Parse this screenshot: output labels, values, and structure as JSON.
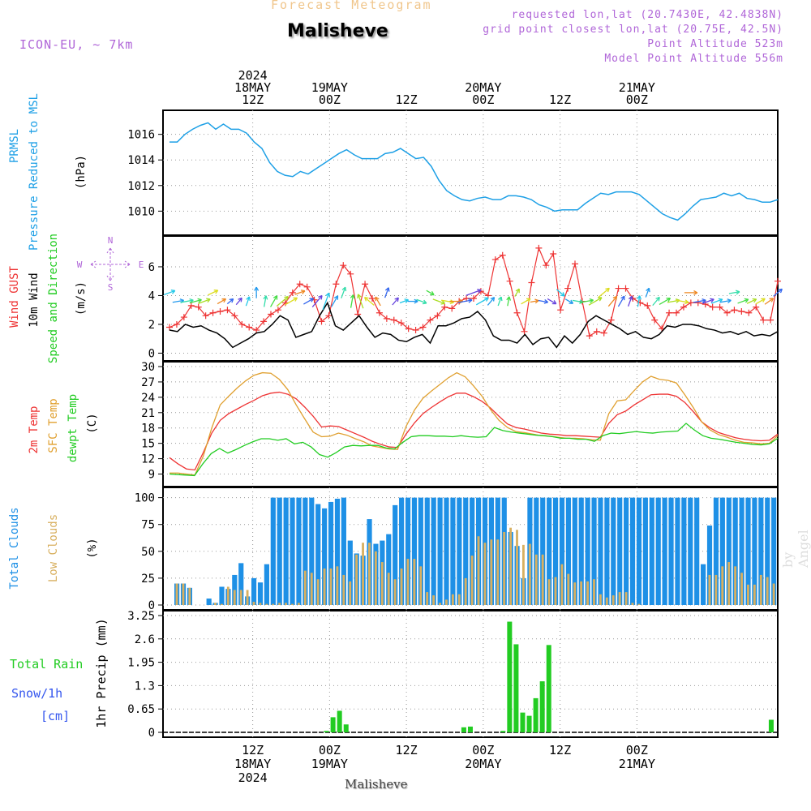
{
  "header": {
    "title": "Forecast Meteogram",
    "location": "Malisheve",
    "model": "ICON-EU, ~ 7km",
    "requested": "requested lon,lat (20.7430E, 42.4838N)",
    "grid_point": "grid point closest lon,lat (20.75E, 42.5N)",
    "point_alt": "Point Altitude 523m",
    "model_alt": "Model Point Altitude 556m"
  },
  "footer": {
    "location": "Malisheve",
    "watermark": "by Angel"
  },
  "colors": {
    "pressure": "#1ea0e6",
    "gust": "#ee3333",
    "wind": "#000000",
    "t2m": "#ee3333",
    "sfc": "#e0a030",
    "dewpt": "#22cc22",
    "total_cloud": "#1e90e6",
    "low_cloud": "#d8b060",
    "precip": "#22cc22",
    "purple": "#b066d8"
  },
  "chart_data": [
    {
      "type": "line",
      "panel": "pressure",
      "ylabel_lines": [
        "PRMSL",
        "Pressure Reduced to MSL"
      ],
      "unit": "(hPa)",
      "ylim": [
        1008.5,
        1017.5
      ],
      "yticks": [
        1010,
        1012,
        1014,
        1016
      ],
      "grid": true,
      "series": [
        {
          "values": [
            1015.4,
            1015.4,
            1016,
            1016.4,
            1016.7,
            1016.9,
            1016.4,
            1016.8,
            1016.4,
            1016.4,
            1016.1,
            1015.4,
            1014.9,
            1013.8,
            1013.1,
            1012.8,
            1012.7,
            1013.1,
            1012.9,
            1013.3,
            1013.7,
            1014.1,
            1014.5,
            1014.8,
            1014.4,
            1014.1,
            1014.1,
            1014.1,
            1014.5,
            1014.6,
            1014.9,
            1014.5,
            1014.1,
            1014.2,
            1013.5,
            1012.4,
            1011.6,
            1011.2,
            1010.9,
            1010.8,
            1011.0,
            1011.1,
            1010.9,
            1010.9,
            1011.2,
            1011.2,
            1011.1,
            1010.9,
            1010.5,
            1010.3,
            1010.0,
            1010.1,
            1010.1,
            1010.1,
            1010.6,
            1011.0,
            1011.4,
            1011.3,
            1011.5,
            1011.5,
            1011.5,
            1011.3,
            1010.8,
            1010.3,
            1009.8,
            1009.5,
            1009.3,
            1009.8,
            1010.4,
            1010.9,
            1011.0,
            1011.1,
            1011.4,
            1011.2,
            1011.4,
            1011.0,
            1010.9,
            1010.7,
            1010.7,
            1010.9
          ]
        }
      ]
    },
    {
      "type": "line",
      "panel": "wind",
      "ylabel_lines": [
        "Wind GUST",
        "10m Wind",
        "Speed and Direction"
      ],
      "unit": "(m/s)",
      "compass": {
        "n": "N",
        "s": "S",
        "e": "E",
        "w": "W"
      },
      "ylim": [
        -0.2,
        7.8
      ],
      "yticks": [
        0,
        2,
        4,
        6
      ],
      "grid": true,
      "series": [
        {
          "name": "Wind GUST",
          "values": [
            1.8,
            2.0,
            2.5,
            3.3,
            3.2,
            2.6,
            2.8,
            2.9,
            3.0,
            2.6,
            2.0,
            1.8,
            1.6,
            2.2,
            2.7,
            3.0,
            3.5,
            4.2,
            4.8,
            4.6,
            3.7,
            2.2,
            2.6,
            4.8,
            6.1,
            5.5,
            2.7,
            4.8,
            3.8,
            2.8,
            2.4,
            2.3,
            2.1,
            1.7,
            1.6,
            1.8,
            2.3,
            2.6,
            3.2,
            3.1,
            3.6,
            3.8,
            3.8,
            4.3,
            4.0,
            6.5,
            6.8,
            5.0,
            2.8,
            1.5,
            4.9,
            7.3,
            6.1,
            6.9,
            3.0,
            4.5,
            6.2,
            3.6,
            1.2,
            1.5,
            1.4,
            2.3,
            4.5,
            4.5,
            3.8,
            3.5,
            3.3,
            2.3,
            1.7,
            2.8,
            2.8,
            3.2,
            3.5,
            3.5,
            3.4,
            3.2,
            3.2,
            2.8,
            3.0,
            2.9,
            2.8,
            3.2,
            2.3,
            2.3,
            5.0
          ]
        },
        {
          "name": "10m Wind",
          "values": [
            1.6,
            1.5,
            2.0,
            1.8,
            1.9,
            1.6,
            1.4,
            1.0,
            0.4,
            0.7,
            1.0,
            1.4,
            1.5,
            2.0,
            2.6,
            2.3,
            1.1,
            1.3,
            1.5,
            2.6,
            3.5,
            1.9,
            1.6,
            2.1,
            2.6,
            1.8,
            1.1,
            1.4,
            1.3,
            0.9,
            0.8,
            1.1,
            1.3,
            0.7,
            1.9,
            1.9,
            2.1,
            2.4,
            2.5,
            2.9,
            2.3,
            1.2,
            0.9,
            0.9,
            0.7,
            1.3,
            0.6,
            1.0,
            1.1,
            0.4,
            1.2,
            0.7,
            1.3,
            2.2,
            2.6,
            2.3,
            2.0,
            1.7,
            1.3,
            1.5,
            1.1,
            1.0,
            1.3,
            1.9,
            1.8,
            2.0,
            2.0,
            1.9,
            1.7,
            1.6,
            1.4,
            1.5,
            1.3,
            1.5,
            1.2,
            1.3,
            1.2,
            1.5
          ]
        }
      ],
      "wind_arrow_directions_deg": [
        250,
        260,
        260,
        255,
        250,
        245,
        240,
        230,
        220,
        200,
        180,
        190,
        210,
        230,
        240,
        250,
        240,
        220,
        200,
        210,
        200,
        190,
        160,
        130,
        150,
        200,
        220,
        250,
        270,
        290,
        300,
        290,
        280,
        270,
        260,
        250,
        240,
        220,
        200,
        190,
        210,
        240,
        260,
        280,
        300,
        310,
        300,
        280,
        260,
        240,
        230,
        220,
        210,
        200,
        190,
        200,
        220,
        240,
        260,
        280,
        270,
        260,
        250,
        250,
        260,
        260,
        250,
        245,
        240,
        235,
        230
      ]
    },
    {
      "type": "line",
      "panel": "temperature",
      "ylabel_lines": [
        "2m Temp",
        "SFC Temp",
        "dewpt Temp"
      ],
      "unit": "(C)",
      "ylim": [
        7.5,
        30
      ],
      "yticks": [
        9,
        12,
        15,
        18,
        21,
        24,
        27,
        30
      ],
      "grid": true,
      "series": [
        {
          "name": "2m Temp",
          "values": [
            12.2,
            11.0,
            10.0,
            9.8,
            13.2,
            17.0,
            19.5,
            20.8,
            21.7,
            22.6,
            23.4,
            24.3,
            24.8,
            25.0,
            24.6,
            23.7,
            22.1,
            20.3,
            18.2,
            18.4,
            18.3,
            17.6,
            16.9,
            16.2,
            15.4,
            14.8,
            14.3,
            14.2,
            16.8,
            19.0,
            20.8,
            22.0,
            23.1,
            24.1,
            24.8,
            24.8,
            24.1,
            23.2,
            21.9,
            20.3,
            18.8,
            18.1,
            17.8,
            17.4,
            17.0,
            16.8,
            16.7,
            16.5,
            16.5,
            16.4,
            16.3,
            16.2,
            18.9,
            20.6,
            21.3,
            22.5,
            23.5,
            24.5,
            24.6,
            24.6,
            24.2,
            23.0,
            21.2,
            19.2,
            18.0,
            17.1,
            16.6,
            16.1,
            15.8,
            15.6,
            15.5,
            15.6,
            16.8
          ]
        },
        {
          "name": "SFC Temp",
          "values": [
            9.2,
            9.2,
            9.0,
            8.8,
            12.5,
            18.0,
            22.5,
            24.2,
            25.8,
            27.2,
            28.3,
            28.8,
            28.7,
            27.5,
            25.5,
            22.5,
            19.8,
            17.2,
            16.3,
            16.4,
            17.0,
            16.6,
            15.9,
            15.3,
            14.5,
            14.2,
            13.9,
            13.8,
            18.3,
            21.5,
            23.8,
            25.2,
            26.5,
            27.8,
            28.8,
            28.0,
            26.2,
            24.2,
            21.6,
            19.5,
            18.1,
            17.3,
            17.1,
            16.8,
            16.5,
            16.4,
            16.2,
            16.0,
            16.0,
            15.9,
            15.7,
            15.6,
            20.8,
            23.3,
            23.5,
            25.3,
            27.0,
            28.1,
            27.5,
            27.3,
            26.8,
            24.5,
            22.0,
            19.2,
            17.6,
            16.7,
            16.2,
            15.6,
            15.2,
            15.1,
            14.9,
            15.0,
            16.5
          ]
        },
        {
          "name": "dewpt Temp",
          "values": [
            9.0,
            8.9,
            8.8,
            8.7,
            11.0,
            13.0,
            14.0,
            13.1,
            13.8,
            14.6,
            15.3,
            15.9,
            15.9,
            15.6,
            15.9,
            14.9,
            15.2,
            14.3,
            12.8,
            12.3,
            13.2,
            14.3,
            14.6,
            14.5,
            14.6,
            14.6,
            14.1,
            13.9,
            15.2,
            16.3,
            16.5,
            16.5,
            16.4,
            16.4,
            16.3,
            16.5,
            16.3,
            16.2,
            16.3,
            18.1,
            17.5,
            17.2,
            17.0,
            16.8,
            16.6,
            16.5,
            16.3,
            16.0,
            16.0,
            15.8,
            15.8,
            15.4,
            16.5,
            17.0,
            16.9,
            17.1,
            17.3,
            17.1,
            17.0,
            17.2,
            17.3,
            17.4,
            18.9,
            17.6,
            16.5,
            16.0,
            15.8,
            15.5,
            15.2,
            15.0,
            14.8,
            14.7,
            14.9,
            16.0
          ]
        }
      ]
    },
    {
      "type": "bar",
      "panel": "clouds",
      "ylabel_lines": [
        "Total Clouds",
        "Low Clouds"
      ],
      "unit": "(%)",
      "ylim": [
        0,
        105
      ],
      "yticks": [
        0,
        25,
        50,
        75,
        100
      ],
      "grid": true,
      "series": [
        {
          "name": "Total Clouds",
          "values": [
            20,
            20,
            16,
            0,
            0,
            6,
            2,
            17,
            15,
            28,
            39,
            8,
            25,
            21,
            38,
            100,
            100,
            100,
            100,
            100,
            100,
            100,
            94,
            90,
            96,
            99,
            100,
            60,
            48,
            46,
            80,
            57,
            60,
            66,
            93,
            100,
            100,
            100,
            100,
            100,
            100,
            100,
            100,
            100,
            100,
            100,
            100,
            100,
            100,
            100,
            100,
            100,
            68,
            55,
            25,
            100,
            100,
            100,
            100,
            100,
            100,
            100,
            100,
            100,
            100,
            100,
            100,
            100,
            100,
            100,
            100,
            100,
            100,
            100,
            100,
            100,
            100,
            100,
            100,
            100,
            100,
            100,
            38,
            74,
            100,
            100,
            100,
            100,
            100,
            100,
            100,
            100,
            100,
            100
          ]
        },
        {
          "name": "Low Clouds",
          "values": [
            20,
            20,
            16,
            0,
            0,
            2,
            1,
            17,
            14,
            14,
            3,
            2,
            1,
            1,
            2,
            1,
            2,
            32,
            30,
            24,
            34,
            36,
            28,
            22,
            47,
            58,
            50,
            40,
            30,
            24,
            34,
            43,
            36,
            12,
            9,
            2,
            5,
            10,
            25,
            46,
            64,
            58,
            61,
            68,
            72,
            70,
            56,
            57,
            47,
            24,
            26,
            38,
            29,
            21,
            22,
            24,
            10,
            7,
            9,
            12,
            2,
            1,
            0,
            0,
            0,
            0,
            0,
            0,
            0,
            0,
            0,
            28,
            36,
            40,
            36,
            30,
            19,
            28,
            26,
            20
          ]
        }
      ]
    },
    {
      "type": "bar",
      "panel": "precip",
      "ylabel_left": [
        "Total Rain",
        "Snow/1h",
        "[cm]"
      ],
      "ylabel": "1hr Precip (mm)",
      "ylim": [
        0,
        3.25
      ],
      "yticks": [
        "0",
        "0.65",
        "1.3",
        "1.95",
        "2.6",
        "3.25"
      ],
      "grid": true,
      "series": [
        {
          "name": "Total Rain",
          "values_by_hour": {
            "24": 0.04,
            "25": 0.42,
            "26": 0.6,
            "27": 0.22,
            "45": 0.14,
            "46": 0.16,
            "51": 0.04,
            "52": 3.08,
            "53": 2.45,
            "54": 0.55,
            "55": 0.46,
            "56": 0.95,
            "57": 1.42,
            "58": 2.43,
            "92": 0.35
          }
        }
      ]
    }
  ],
  "time_axis": {
    "start_label_top": [
      "2024",
      "18MAY",
      "12Z"
    ],
    "top_labels": [
      {
        "lines": [
          "2024",
          "18MAY",
          "12Z"
        ]
      },
      {
        "lines": [
          "19MAY",
          "00Z"
        ]
      },
      {
        "lines": [
          "12Z"
        ]
      },
      {
        "lines": [
          "20MAY",
          "00Z"
        ]
      },
      {
        "lines": [
          "12Z"
        ]
      },
      {
        "lines": [
          "21MAY",
          "00Z"
        ]
      }
    ],
    "bottom_labels": [
      {
        "lines": [
          "12Z",
          "18MAY",
          "2024"
        ]
      },
      {
        "lines": [
          "00Z",
          "19MAY"
        ]
      },
      {
        "lines": [
          "12Z"
        ]
      },
      {
        "lines": [
          "00Z",
          "20MAY"
        ]
      },
      {
        "lines": [
          "12Z"
        ]
      },
      {
        "lines": [
          "00Z",
          "21MAY"
        ]
      }
    ]
  }
}
